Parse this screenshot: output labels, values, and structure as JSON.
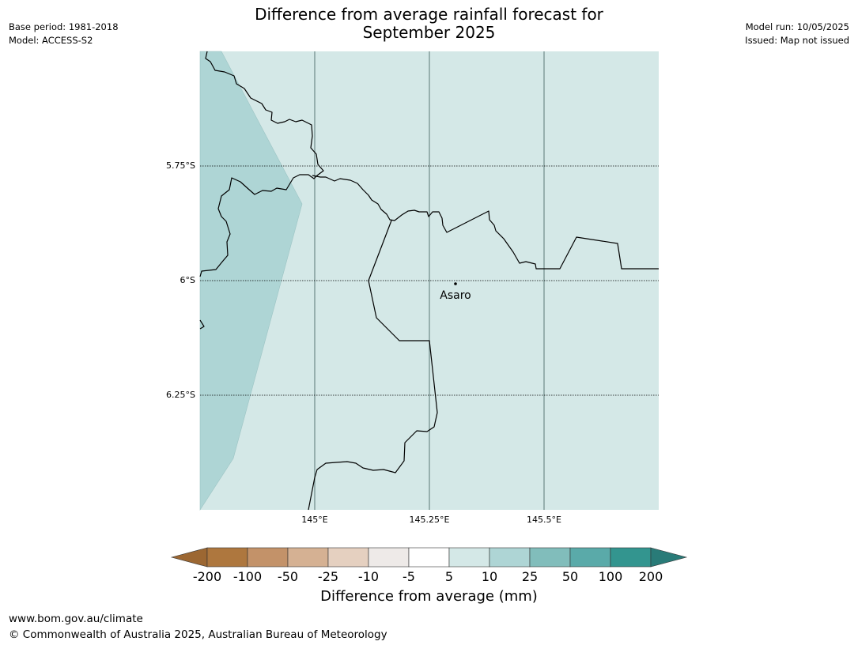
{
  "title_line1": "Difference from average rainfall forecast for",
  "title_line2": "September 2025",
  "meta_left": {
    "base_period": "Base period: 1981-2018",
    "model": "Model: ACCESS-S2"
  },
  "meta_right": {
    "model_run": "Model run: 10/05/2025",
    "issued": "Issued: Map not issued"
  },
  "map": {
    "lat_labels": [
      "5.75°S",
      "6°S",
      "6.25°S"
    ],
    "lon_labels": [
      "145°E",
      "145.25°E",
      "145.5°E"
    ],
    "place": "Asaro",
    "colors": {
      "background": "#d4e8e7",
      "wetter_region": "#aed5d5"
    }
  },
  "colorbar": {
    "labels": [
      "-200",
      "-100",
      "-50",
      "-25",
      "-10",
      "-5",
      "5",
      "10",
      "25",
      "50",
      "100",
      "200"
    ],
    "colors": [
      "#9c6732",
      "#ae773e",
      "#c39269",
      "#d5b193",
      "#e5d0c0",
      "#eeeae8",
      "#ffffff",
      "#d4e8e7",
      "#aed5d5",
      "#81bdbb",
      "#5aaaa9",
      "#33958f",
      "#297b78"
    ],
    "title": "Difference from average (mm)"
  },
  "footer": {
    "url": "www.bom.gov.au/climate",
    "copyright": "© Commonwealth of Australia 2025, Australian Bureau of Meteorology"
  }
}
